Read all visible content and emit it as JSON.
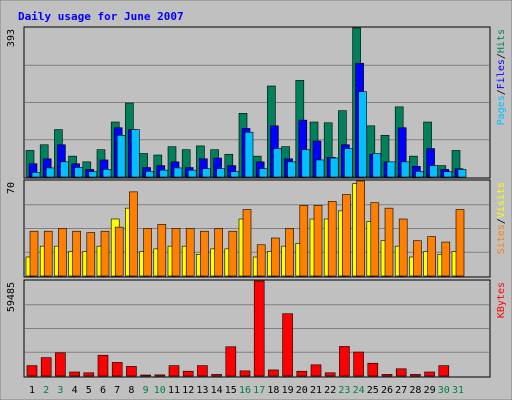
{
  "title": "Daily usage for June 2007",
  "colors": {
    "background": "#c0c0c0",
    "frame": "#808080",
    "title": "#0000ff",
    "hits": "#00805c",
    "files": "#0000ff",
    "pages": "#00c0ff",
    "visits": "#ffff00",
    "sites": "#ff8000",
    "kbytes": "#ff0000",
    "weekend_day_label": "#008040",
    "weekday_day_label": "#000000"
  },
  "chart_data": [
    {
      "type": "bar",
      "panel": "hits-files-pages",
      "scale_max_label": "393",
      "ylim": [
        0,
        393
      ],
      "right_label": [
        {
          "text": "Pages",
          "color": "#00c0ff"
        },
        {
          "text": "/",
          "color": "#000000"
        },
        {
          "text": "Files",
          "color": "#0000ff"
        },
        {
          "text": "/",
          "color": "#000000"
        },
        {
          "text": "Hits",
          "color": "#00805c"
        }
      ],
      "categories": [
        "1",
        "2",
        "3",
        "4",
        "5",
        "6",
        "7",
        "8",
        "9",
        "10",
        "11",
        "12",
        "13",
        "14",
        "15",
        "16",
        "17",
        "18",
        "19",
        "20",
        "21",
        "22",
        "23",
        "24",
        "25",
        "26",
        "27",
        "28",
        "29",
        "30",
        "31"
      ],
      "series": [
        {
          "name": "Hits",
          "color": "#00805c",
          "values": [
            70,
            85,
            125,
            55,
            40,
            72,
            145,
            195,
            62,
            58,
            80,
            72,
            82,
            72,
            60,
            168,
            55,
            240,
            80,
            255,
            145,
            143,
            175,
            393,
            135,
            110,
            185,
            55,
            145,
            30,
            70
          ]
        },
        {
          "name": "Files",
          "color": "#0000ff",
          "values": [
            35,
            48,
            85,
            35,
            20,
            45,
            130,
            125,
            25,
            30,
            40,
            25,
            48,
            50,
            30,
            128,
            40,
            135,
            48,
            150,
            95,
            52,
            85,
            300,
            60,
            40,
            130,
            28,
            75,
            20,
            22
          ]
        },
        {
          "name": "Pages",
          "color": "#00c0ff",
          "values": [
            12,
            24,
            40,
            25,
            14,
            20,
            110,
            125,
            15,
            18,
            24,
            18,
            22,
            22,
            14,
            118,
            22,
            75,
            40,
            72,
            45,
            50,
            75,
            225,
            62,
            40,
            40,
            15,
            30,
            14,
            20
          ]
        }
      ]
    },
    {
      "type": "bar",
      "panel": "visits-sites",
      "scale_max_label": "70",
      "ylim": [
        0,
        70
      ],
      "right_label": [
        {
          "text": "Sites",
          "color": "#ff8000"
        },
        {
          "text": "/",
          "color": "#000000"
        },
        {
          "text": "Visits",
          "color": "#ffff00"
        }
      ],
      "categories": [
        "1",
        "2",
        "3",
        "4",
        "5",
        "6",
        "7",
        "8",
        "9",
        "10",
        "11",
        "12",
        "13",
        "14",
        "15",
        "16",
        "17",
        "18",
        "19",
        "20",
        "21",
        "22",
        "23",
        "24",
        "25",
        "26",
        "27",
        "28",
        "29",
        "30",
        "31"
      ],
      "series": [
        {
          "name": "Visits",
          "color": "#ffff00",
          "values": [
            14,
            22,
            22,
            18,
            18,
            22,
            42,
            50,
            18,
            20,
            22,
            22,
            16,
            20,
            20,
            42,
            14,
            18,
            22,
            24,
            42,
            42,
            48,
            68,
            40,
            26,
            22,
            14,
            18,
            16,
            18
          ]
        },
        {
          "name": "Sites",
          "color": "#ff8000",
          "values": [
            33,
            33,
            35,
            33,
            32,
            33,
            36,
            62,
            35,
            38,
            35,
            35,
            33,
            35,
            33,
            49,
            23,
            28,
            35,
            52,
            52,
            55,
            60,
            70,
            54,
            50,
            42,
            26,
            29,
            25,
            49
          ]
        }
      ]
    },
    {
      "type": "bar",
      "panel": "kbytes",
      "scale_max_label": "59485",
      "ylim": [
        0,
        59485
      ],
      "right_label": [
        {
          "text": "KBytes",
          "color": "#ff0000"
        }
      ],
      "categories": [
        "1",
        "2",
        "3",
        "4",
        "5",
        "6",
        "7",
        "8",
        "9",
        "10",
        "11",
        "12",
        "13",
        "14",
        "15",
        "16",
        "17",
        "18",
        "19",
        "20",
        "21",
        "22",
        "23",
        "24",
        "25",
        "26",
        "27",
        "28",
        "29",
        "30",
        "31"
      ],
      "series": [
        {
          "name": "KBytes",
          "color": "#ff0000",
          "values": [
            6500,
            11500,
            14500,
            2500,
            2000,
            13000,
            8500,
            6000,
            500,
            700,
            6500,
            3000,
            6500,
            1000,
            18300,
            3200,
            59485,
            3800,
            39000,
            3000,
            7000,
            2000,
            18500,
            15000,
            8000,
            1000,
            4500,
            1000,
            2500,
            6500,
            0
          ]
        }
      ]
    }
  ],
  "x_axis": {
    "days": [
      {
        "label": "1",
        "weekend": false
      },
      {
        "label": "2",
        "weekend": true
      },
      {
        "label": "3",
        "weekend": true
      },
      {
        "label": "4",
        "weekend": false
      },
      {
        "label": "5",
        "weekend": false
      },
      {
        "label": "6",
        "weekend": false
      },
      {
        "label": "7",
        "weekend": false
      },
      {
        "label": "8",
        "weekend": false
      },
      {
        "label": "9",
        "weekend": true
      },
      {
        "label": "10",
        "weekend": true
      },
      {
        "label": "11",
        "weekend": false
      },
      {
        "label": "12",
        "weekend": false
      },
      {
        "label": "13",
        "weekend": false
      },
      {
        "label": "14",
        "weekend": false
      },
      {
        "label": "15",
        "weekend": false
      },
      {
        "label": "16",
        "weekend": true
      },
      {
        "label": "17",
        "weekend": true
      },
      {
        "label": "18",
        "weekend": false
      },
      {
        "label": "19",
        "weekend": false
      },
      {
        "label": "20",
        "weekend": false
      },
      {
        "label": "21",
        "weekend": false
      },
      {
        "label": "22",
        "weekend": false
      },
      {
        "label": "23",
        "weekend": true
      },
      {
        "label": "24",
        "weekend": true
      },
      {
        "label": "25",
        "weekend": false
      },
      {
        "label": "26",
        "weekend": false
      },
      {
        "label": "27",
        "weekend": false
      },
      {
        "label": "28",
        "weekend": false
      },
      {
        "label": "29",
        "weekend": false
      },
      {
        "label": "30",
        "weekend": true
      },
      {
        "label": "31",
        "weekend": true
      }
    ]
  }
}
